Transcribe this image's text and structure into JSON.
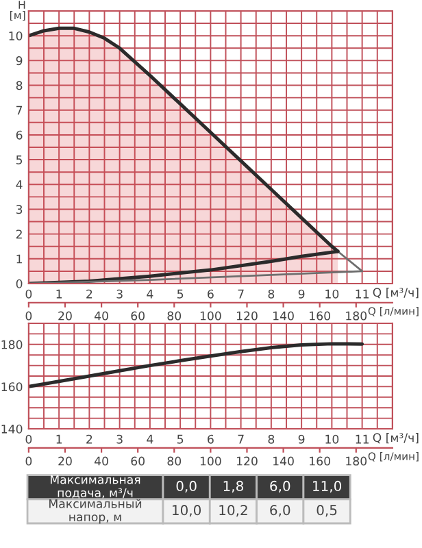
{
  "chart_data": [
    {
      "type": "line",
      "ylabel": "H\n[м]",
      "xlabel": "Q [м³/ч]",
      "x2label": "Q [л/мин]",
      "xlim": [
        0,
        12
      ],
      "xticks": [
        0,
        {
          "value": 0.5,
          "label": null
        },
        1,
        {
          "value": 1.5,
          "label": null
        },
        2,
        {
          "value": 2.5,
          "label": null
        },
        3,
        {
          "value": 3.5,
          "label": null
        },
        4,
        {
          "value": 4.5,
          "label": null
        },
        5,
        {
          "value": 5.5,
          "label": null
        },
        6,
        {
          "value": 6.5,
          "label": null
        },
        7,
        {
          "value": 7.5,
          "label": null
        },
        8,
        {
          "value": 8.5,
          "label": null
        },
        9,
        {
          "value": 9.5,
          "label": null
        },
        10,
        {
          "value": 10.5,
          "label": null
        },
        11,
        {
          "value": 11.5,
          "label": null
        }
      ],
      "ylim": [
        0,
        11
      ],
      "yticks": [
        0,
        {
          "value": 0.5,
          "label": null
        },
        1,
        {
          "value": 1.5,
          "label": null
        },
        2,
        {
          "value": 2.5,
          "label": null
        },
        3,
        {
          "value": 3.5,
          "label": null
        },
        4,
        {
          "value": 4.5,
          "label": null
        },
        5,
        {
          "value": 5.5,
          "label": null
        },
        6,
        {
          "value": 6.5,
          "label": null
        },
        7,
        {
          "value": 7.5,
          "label": null
        },
        8,
        {
          "value": 8.5,
          "label": null
        },
        9,
        {
          "value": 9.5,
          "label": null
        },
        10,
        {
          "value": 10.5,
          "label": null
        }
      ],
      "x2lim": [
        0,
        200
      ],
      "x2ticks": [
        0,
        20,
        40,
        60,
        80,
        100,
        120,
        140,
        160,
        180
      ],
      "grid": true,
      "series": [
        {
          "type": "area",
          "color": "#2b2b2b",
          "x": [
            0,
            0.5,
            1,
            1.5,
            2,
            2.5,
            3,
            4,
            5,
            6,
            7,
            8,
            9,
            10,
            10.2
          ],
          "values": [
            10.0,
            10.2,
            10.3,
            10.3,
            10.15,
            9.9,
            9.5,
            8.4,
            7.25,
            6.1,
            4.95,
            3.8,
            2.65,
            1.5,
            1.3
          ]
        },
        {
          "type": "line",
          "color": "#6e6e6e",
          "x": [
            10.2,
            11.0
          ],
          "values": [
            1.3,
            0.5
          ]
        },
        {
          "type": "line",
          "color": "#2b2b2b",
          "x": [
            0,
            2,
            4,
            6,
            8,
            9,
            10.2
          ],
          "values": [
            0,
            0.1,
            0.3,
            0.55,
            0.9,
            1.1,
            1.3
          ]
        },
        {
          "type": "line",
          "color": "#6e6e6e",
          "x": [
            0,
            4,
            8,
            11
          ],
          "values": [
            0,
            0.15,
            0.35,
            0.5
          ]
        }
      ]
    },
    {
      "type": "line",
      "xlabel": "Q [м³/ч]",
      "x2label": "Q [л/мин]",
      "xlim": [
        0,
        12
      ],
      "xticks": [
        0,
        {
          "value": 0.5,
          "label": null
        },
        1,
        {
          "value": 1.5,
          "label": null
        },
        2,
        {
          "value": 2.5,
          "label": null
        },
        3,
        {
          "value": 3.5,
          "label": null
        },
        4,
        {
          "value": 4.5,
          "label": null
        },
        5,
        {
          "value": 5.5,
          "label": null
        },
        6,
        {
          "value": 6.5,
          "label": null
        },
        7,
        {
          "value": 7.5,
          "label": null
        },
        8,
        {
          "value": 8.5,
          "label": null
        },
        9,
        {
          "value": 9.5,
          "label": null
        },
        10,
        {
          "value": 10.5,
          "label": null
        },
        11,
        {
          "value": 11.5,
          "label": null
        }
      ],
      "ylim": [
        140,
        190
      ],
      "yticks": [
        140,
        {
          "value": 145,
          "label": null
        },
        {
          "value": 150,
          "label": null
        },
        {
          "value": 155,
          "label": null
        },
        160,
        {
          "value": 165,
          "label": null
        },
        {
          "value": 170,
          "label": null
        },
        {
          "value": 175,
          "label": null
        },
        180,
        {
          "value": 185,
          "label": null
        }
      ],
      "x2lim": [
        0,
        200
      ],
      "x2ticks": [
        0,
        20,
        40,
        60,
        80,
        100,
        120,
        140,
        160,
        180
      ],
      "grid": true,
      "series": [
        {
          "color": "#2b2b2b",
          "x": [
            0,
            1,
            2,
            3,
            4,
            5,
            6,
            7,
            8,
            9,
            10,
            11
          ],
          "values": [
            160,
            162.5,
            165,
            167.5,
            170,
            172.3,
            174.5,
            176.6,
            178.5,
            179.8,
            180.3,
            180.2
          ]
        }
      ]
    },
    {
      "type": "other",
      "annotations": [
        "Максимальная подача, м³/ч",
        "0,0",
        "1,8",
        "6,0",
        "11,0",
        "Максимальный напор, м",
        "10,0",
        "10,2",
        "6,0",
        "0,5"
      ]
    }
  ]
}
